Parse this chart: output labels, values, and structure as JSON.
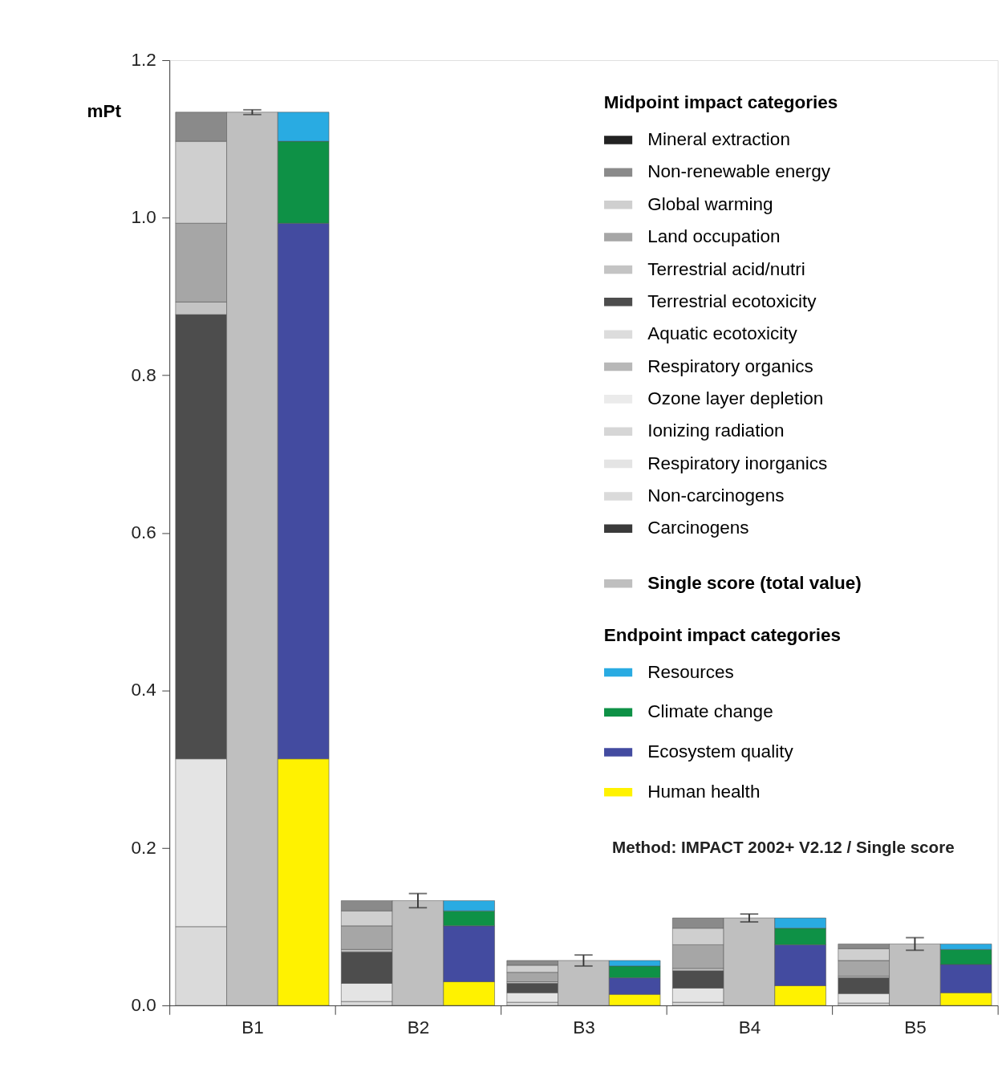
{
  "chart_data": {
    "type": "bar",
    "ylabel": "mPt",
    "legend_title": [
      "Midpoint impact categories",
      null,
      "Endpoint impact categories"
    ],
    "legend": "top right",
    "grid": false,
    "annotations": [
      "Method: IMPACT 2002+ V2.12 / Single score"
    ],
    "categories": [
      "B1",
      "B2",
      "B3",
      "B4",
      "B5"
    ],
    "ylim": [
      0,
      1.2
    ],
    "yticks": [
      {
        "value": 0,
        "label": "0.0"
      },
      {
        "value": 0.2,
        "label": "0.2"
      },
      {
        "value": 0.4,
        "label": "0.4"
      },
      {
        "value": 0.6,
        "label": "0.6"
      },
      {
        "value": 0.8,
        "label": "0.8"
      },
      {
        "value": 1.0,
        "label": "1.0"
      },
      {
        "value": 1.2,
        "label": "1.2"
      }
    ],
    "series": [
      {
        "name": "Carcinogens",
        "color": "#3a3a3a",
        "values": [
          0,
          0,
          0,
          0,
          0
        ]
      },
      {
        "name": "Non-carcinogens",
        "color": "#dadada",
        "values": [
          0.1,
          0.005,
          0.004,
          0.004,
          0.003
        ],
        "base": [
          0,
          0,
          0,
          0,
          0
        ]
      },
      {
        "name": "Respiratory inorganics",
        "color": "#e4e4e4",
        "values": [
          0.213,
          0.023,
          0.012,
          0.018,
          0.012
        ],
        "base": [
          0.1,
          0.005,
          0.004,
          0.004,
          0.003
        ]
      },
      {
        "name": "Ionizing radiation",
        "color": "#d6d6d6",
        "values": [
          0,
          0,
          0,
          0,
          0
        ]
      },
      {
        "name": "Ozone layer depletion",
        "color": "#ebebeb",
        "values": [
          0,
          0,
          0,
          0,
          0
        ]
      },
      {
        "name": "Respiratory organics",
        "color": "#b8b8b8",
        "values": [
          0,
          0,
          0,
          0,
          0
        ]
      },
      {
        "name": "Aquatic ecotoxicity",
        "color": "#dcdcdc",
        "values": [
          0,
          0,
          0,
          0,
          0
        ]
      },
      {
        "name": "Terrestrial ecotoxicity",
        "color": "#4d4d4d",
        "values": [
          0.564,
          0.04,
          0.012,
          0.022,
          0.02
        ],
        "base": [
          0.313,
          0.028,
          0.016,
          0.022,
          0.015
        ]
      },
      {
        "name": "Terrestrial acid/nutri",
        "color": "#c4c4c4",
        "values": [
          0.016,
          0.003,
          0.002,
          0.003,
          0.002
        ],
        "base": [
          0.877,
          0.068,
          0.028,
          0.044,
          0.035
        ]
      },
      {
        "name": "Land occupation",
        "color": "#a6a6a6",
        "values": [
          0.1,
          0.03,
          0.012,
          0.03,
          0.02
        ],
        "base": [
          0.893,
          0.071,
          0.03,
          0.047,
          0.037
        ]
      },
      {
        "name": "Global warming",
        "color": "#cfcfcf",
        "values": [
          0.104,
          0.019,
          0.009,
          0.021,
          0.015
        ],
        "base": [
          0.993,
          0.101,
          0.042,
          0.077,
          0.057
        ]
      },
      {
        "name": "Non-renewable energy",
        "color": "#8a8a8a",
        "values": [
          0.037,
          0.013,
          0.006,
          0.013,
          0.006
        ],
        "base": [
          1.097,
          0.12,
          0.051,
          0.098,
          0.072
        ]
      },
      {
        "name": "Mineral extraction",
        "color": "#222222",
        "values": [
          0,
          0,
          0,
          0,
          0
        ]
      },
      {
        "name": "Single score (total value)",
        "color": "#bfbfbf",
        "values": [
          1.134,
          0.133,
          0.057,
          0.111,
          0.078
        ],
        "errors": [
          0.003,
          0.009,
          0.007,
          0.005,
          0.008
        ]
      },
      {
        "name": "Human health",
        "color": "#fff200",
        "values": [
          0.313,
          0.03,
          0.014,
          0.025,
          0.016
        ],
        "base": [
          0,
          0,
          0,
          0,
          0
        ]
      },
      {
        "name": "Ecosystem quality",
        "color": "#434ba0",
        "values": [
          0.68,
          0.071,
          0.021,
          0.052,
          0.036
        ],
        "base": [
          0.313,
          0.03,
          0.014,
          0.025,
          0.016
        ]
      },
      {
        "name": "Climate change",
        "color": "#0e9146",
        "values": [
          0.104,
          0.019,
          0.015,
          0.021,
          0.019
        ],
        "base": [
          0.993,
          0.101,
          0.035,
          0.077,
          0.052
        ]
      },
      {
        "name": "Resources",
        "color": "#29abe2",
        "values": [
          0.037,
          0.013,
          0.007,
          0.013,
          0.007
        ],
        "base": [
          1.097,
          0.12,
          0.05,
          0.098,
          0.071
        ]
      }
    ]
  }
}
